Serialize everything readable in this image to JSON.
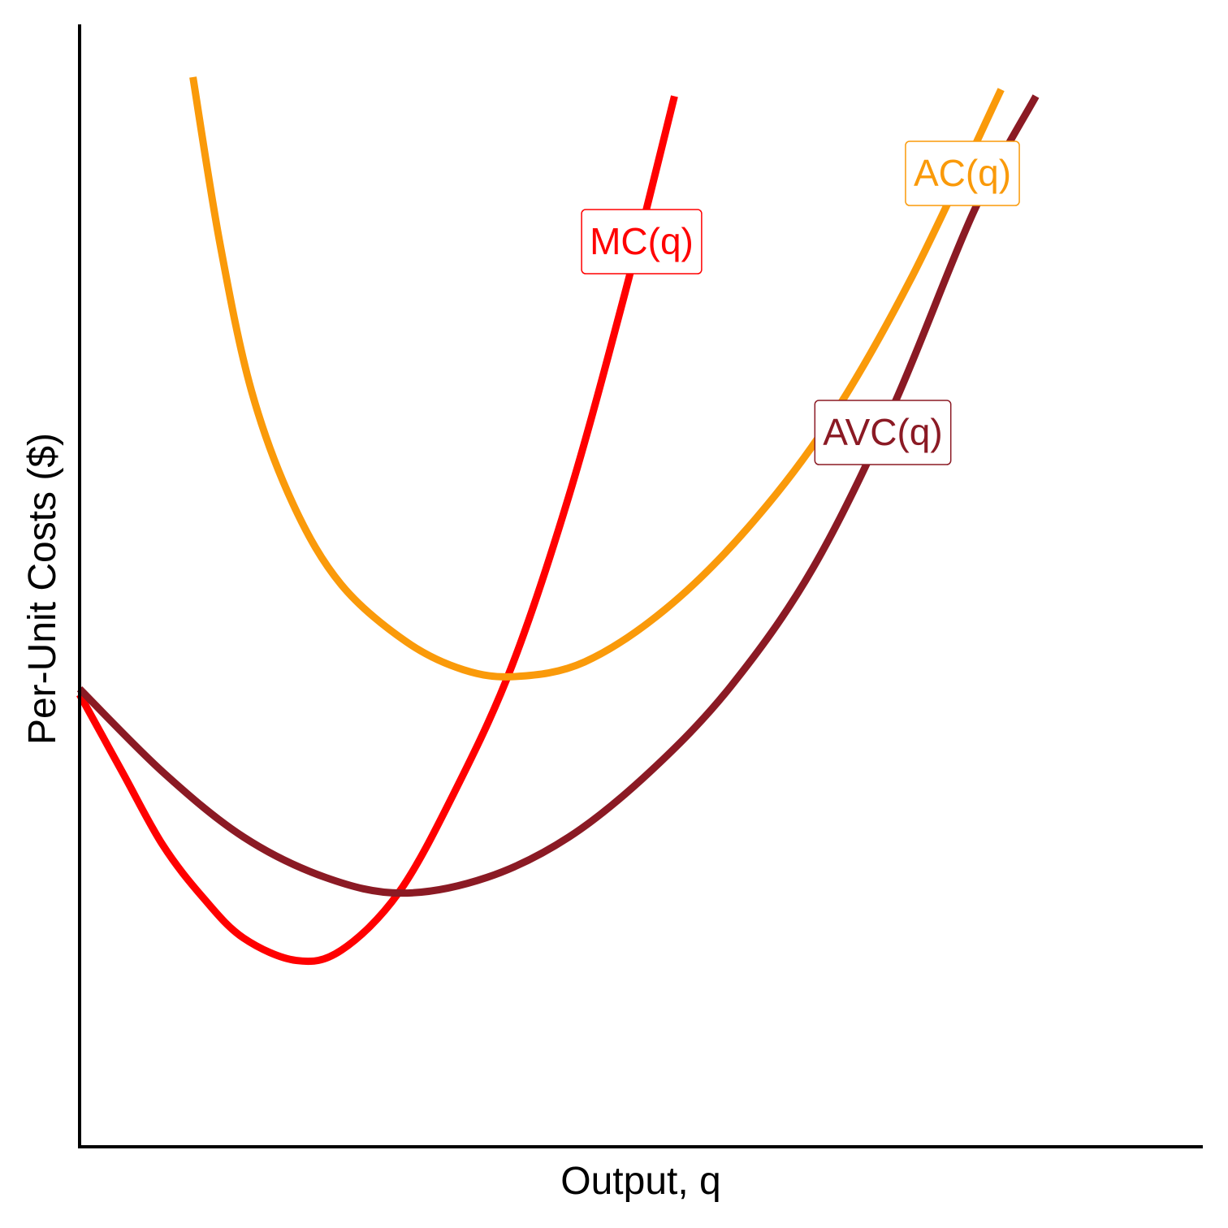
{
  "chart_data": {
    "type": "line",
    "xlabel": "Output, q",
    "ylabel": "Per-Unit Costs ($)",
    "xlim": [
      0,
      10
    ],
    "ylim": [
      0,
      10
    ],
    "series": [
      {
        "name": "MC(q)",
        "color": "#ff0000",
        "x": [
          0,
          0.38,
          0.74,
          1.1,
          1.46,
          1.93,
          2.33,
          2.84,
          3.34,
          3.85,
          4.36,
          4.86,
          5.3
        ],
        "values": [
          4.03,
          3.34,
          2.69,
          2.22,
          1.86,
          1.66,
          1.75,
          2.26,
          3.16,
          4.28,
          5.8,
          7.61,
          9.36
        ]
      },
      {
        "name": "AC(q)",
        "color": "#fa9a0a",
        "x": [
          1.01,
          1.25,
          1.53,
          1.9,
          2.33,
          2.91,
          3.42,
          3.89,
          4.5,
          5.22,
          5.95,
          6.67,
          7.4,
          8.21
        ],
        "values": [
          9.53,
          8.05,
          6.74,
          5.73,
          5.01,
          4.5,
          4.25,
          4.19,
          4.32,
          4.79,
          5.51,
          6.45,
          7.72,
          9.42
        ]
      },
      {
        "name": "AVC(q)",
        "color": "#8b1a24",
        "x": [
          0,
          0.74,
          1.46,
          2.19,
          2.87,
          3.63,
          4.36,
          5.08,
          5.8,
          6.53,
          7.25,
          7.97,
          8.52
        ],
        "values": [
          4.08,
          3.34,
          2.76,
          2.4,
          2.26,
          2.4,
          2.76,
          3.34,
          4.1,
          5.15,
          6.6,
          8.34,
          9.36
        ]
      }
    ]
  }
}
